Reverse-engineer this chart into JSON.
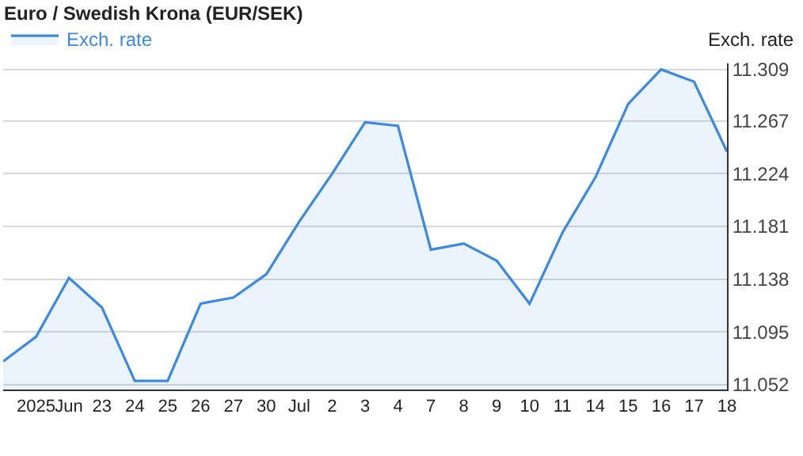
{
  "chart_data": {
    "type": "area",
    "title": "Euro / Swedish Krona (EUR/SEK)",
    "ylabel": "Exch. rate",
    "categories": [
      null,
      "2025",
      "Jun",
      "23",
      "24",
      "25",
      "26",
      "27",
      "30",
      "Jul",
      "2",
      "3",
      "4",
      "7",
      "8",
      "9",
      "10",
      "11",
      "14",
      "15",
      "16",
      "17",
      "18"
    ],
    "series": [
      {
        "name": "Exch. rate",
        "color": "#3d88e0",
        "values": [
          11.071,
          11.091,
          11.139,
          11.115,
          11.055,
          11.055,
          11.118,
          11.123,
          11.142,
          11.185,
          11.224,
          11.266,
          11.263,
          11.162,
          11.167,
          11.153,
          11.118,
          11.176,
          11.221,
          11.281,
          11.309,
          11.299,
          11.242
        ]
      }
    ],
    "ylim": [
      11.048,
      11.314
    ],
    "yticks": [
      11.052,
      11.095,
      11.138,
      11.181,
      11.224,
      11.267,
      11.309
    ],
    "grid": "y",
    "legend": "top left",
    "marker": "none",
    "line_style": "solid"
  }
}
